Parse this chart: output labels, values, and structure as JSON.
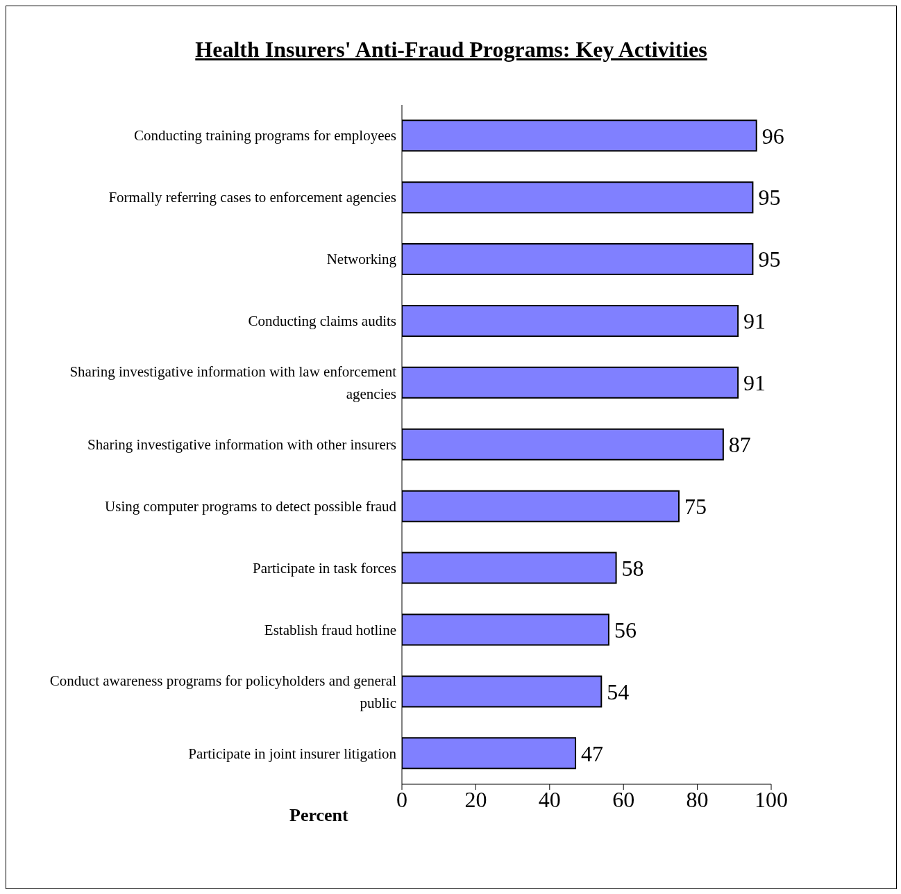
{
  "chart_data": {
    "type": "bar",
    "orientation": "horizontal",
    "title": "Health Insurers' Anti-Fraud Programs: Key Activities",
    "xlabel": "Percent",
    "categories": [
      "Conducting training programs for employees",
      "Formally referring cases to enforcement agencies",
      "Networking",
      "Conducting claims audits",
      "Sharing investigative information with law enforcement agencies",
      "Sharing investigative information with other insurers",
      "Using computer programs to detect possible fraud",
      "Participate in task forces",
      "Establish fraud hotline",
      "Conduct awareness programs for policyholders and general public",
      "Participate in joint insurer litigation"
    ],
    "values": [
      96,
      95,
      95,
      91,
      91,
      87,
      75,
      58,
      56,
      54,
      47
    ],
    "color": "#8080ff",
    "xlim": [
      0,
      100
    ],
    "xticks": [
      0,
      20,
      40,
      60,
      80,
      100
    ],
    "data_labels": true
  }
}
